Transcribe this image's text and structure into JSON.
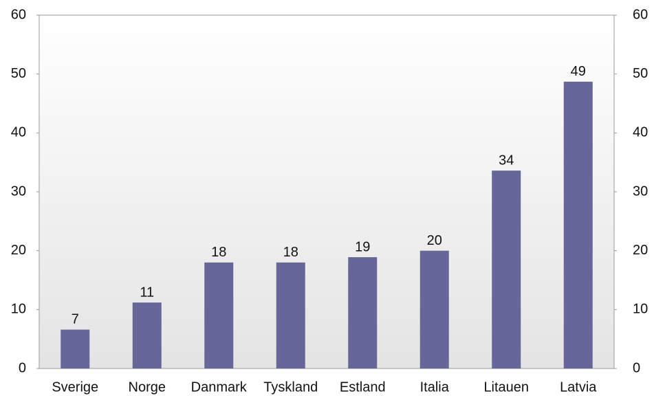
{
  "chart_data": {
    "type": "bar",
    "categories": [
      "Sverige",
      "Norge",
      "Danmark",
      "Tyskland",
      "Estland",
      "Italia",
      "Litauen",
      "Latvia"
    ],
    "values": [
      6.6,
      11.2,
      18,
      18,
      18.9,
      20,
      33.6,
      48.7
    ],
    "value_labels": [
      "7",
      "11",
      "18",
      "18",
      "19",
      "20",
      "34",
      "49"
    ],
    "color": "#666699",
    "ylim": [
      0,
      60
    ],
    "yticks": [
      0,
      10,
      20,
      30,
      40,
      50,
      60
    ],
    "y2lim": [
      0,
      60
    ],
    "y2ticks": [
      0,
      10,
      20,
      30,
      40,
      50,
      60
    ],
    "grid": false
  }
}
